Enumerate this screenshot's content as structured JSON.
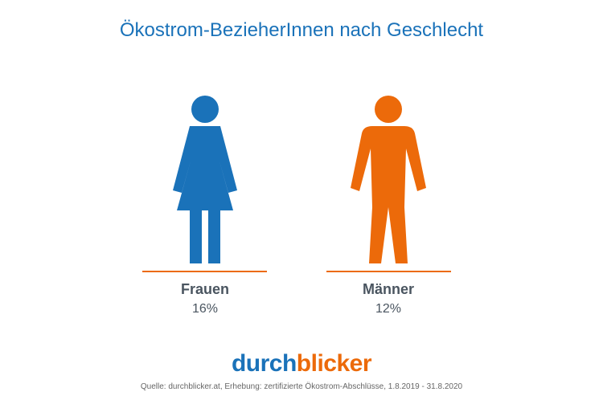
{
  "title": "Ökostrom-BezieherInnen nach Geschlecht",
  "colors": {
    "frauen": "#1a72b9",
    "maenner": "#ec6a0a",
    "baseline": "#ec6a0a",
    "title": "#1a72b9",
    "text": "#4a5560"
  },
  "chart_data": {
    "type": "pictograph",
    "categories": [
      "Frauen",
      "Männer"
    ],
    "values": [
      16,
      12
    ],
    "value_labels": [
      "16%",
      "12%"
    ],
    "icons": [
      "female-figure-icon",
      "male-figure-icon"
    ]
  },
  "logo": {
    "part1": "durch",
    "part2": "blicker"
  },
  "source": "Quelle: durchblicker.at, Erhebung: zertifizierte Ökostrom-Abschlüsse, 1.8.2019 - 31.8.2020"
}
